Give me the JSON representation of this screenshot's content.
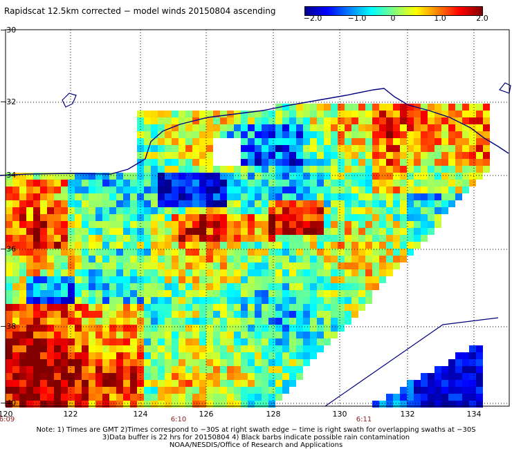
{
  "title": "Rapidscat 12.5km corrected − model winds 20150804 ascending",
  "colorbar": {
    "ticks": [
      "−2.0",
      "−1.0",
      "0",
      "1.0",
      "2.0"
    ],
    "range": [
      -2.0,
      2.0
    ],
    "colors": [
      "#000090",
      "#0000ff",
      "#0080ff",
      "#00ffff",
      "#80ff80",
      "#ffff00",
      "#ff8000",
      "#ff0000",
      "#800000"
    ]
  },
  "latitudes": [
    "−30",
    "−32",
    "−34",
    "−36",
    "−38",
    "−40"
  ],
  "longitudes": [
    "120",
    "122",
    "124",
    "126",
    "128",
    "130",
    "132",
    "134"
  ],
  "times": [
    "6:09",
    "6:10",
    "6:11"
  ],
  "notes": {
    "line1": "Note: 1) Times are GMT 2)Times correspond to −30S at right swath edge − time is right swath for overlapping swaths at −30S",
    "line2": "3)Data buffer is 22 hrs for 20150804 4) Black barbs indicate possible rain contamination",
    "line3": "NOAA/NESDIS/Office of Research and Applications"
  },
  "colors": {
    "coastline": "#000080",
    "grid": "#000000",
    "missing": "#ffffff"
  }
}
